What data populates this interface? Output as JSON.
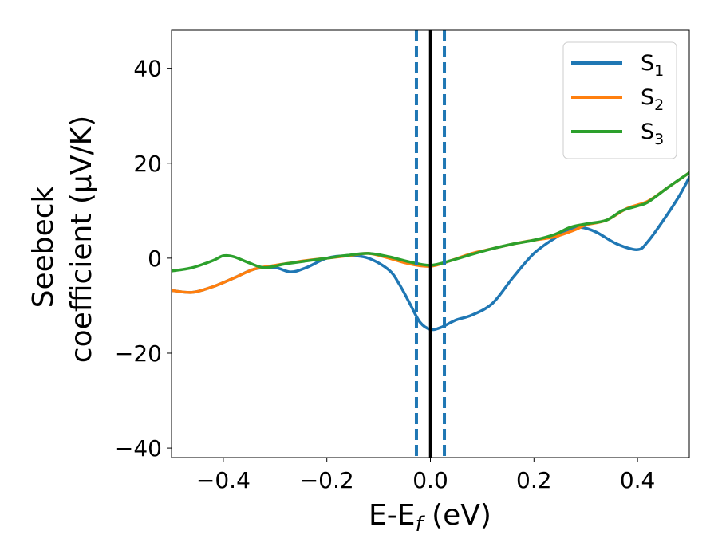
{
  "chart_data": {
    "type": "line",
    "xlabel": {
      "main": "E-E",
      "sub": "f",
      "unit": " (eV)"
    },
    "ylabel": {
      "line1": "Seebeck",
      "line2": "coefficient  (μV/K)"
    },
    "xlim": [
      -0.5,
      0.5
    ],
    "ylim": [
      -42,
      48
    ],
    "x_ticks": [
      -0.4,
      -0.2,
      0.0,
      0.2,
      0.4
    ],
    "x_tick_labels": [
      "−0.4",
      "−0.2",
      "0.0",
      "0.2",
      "0.4"
    ],
    "y_ticks": [
      -40,
      -20,
      0,
      20,
      40
    ],
    "y_tick_labels": [
      "−40",
      "−20",
      "0",
      "20",
      "40"
    ],
    "grid": false,
    "legend": {
      "placement": "top-right",
      "entries": [
        {
          "main": "S",
          "sub": "1"
        },
        {
          "main": "S",
          "sub": "2"
        },
        {
          "main": "S",
          "sub": "3"
        }
      ]
    },
    "vertical_lines": [
      {
        "x": -0.027,
        "style": "dashed",
        "color": "#1f77b4"
      },
      {
        "x": 0.0,
        "style": "solid",
        "color": "#000000"
      },
      {
        "x": 0.027,
        "style": "dashed",
        "color": "#1f77b4"
      }
    ],
    "series": [
      {
        "name": "S1",
        "color": "#1f77b4",
        "x": [
          -0.5,
          -0.46,
          -0.42,
          -0.38,
          -0.34,
          -0.3,
          -0.27,
          -0.24,
          -0.2,
          -0.16,
          -0.12,
          -0.08,
          -0.06,
          -0.04,
          -0.02,
          0.0,
          0.02,
          0.05,
          0.08,
          0.12,
          0.16,
          0.2,
          0.24,
          0.27,
          0.29,
          0.32,
          0.36,
          0.4,
          0.42,
          0.45,
          0.48,
          0.5
        ],
        "y": [
          -6.8,
          -7.2,
          -6.0,
          -4.2,
          -2.3,
          -2.0,
          -2.9,
          -2.0,
          0.0,
          0.5,
          0.0,
          -2.5,
          -5.5,
          -9.5,
          -13.5,
          -15.0,
          -14.6,
          -13.0,
          -12.0,
          -9.5,
          -4.0,
          1.0,
          4.2,
          6.0,
          6.5,
          5.5,
          3.0,
          1.8,
          3.5,
          8.0,
          13.0,
          17.0
        ]
      },
      {
        "name": "S2",
        "color": "#ff7f0e",
        "x": [
          -0.5,
          -0.46,
          -0.42,
          -0.38,
          -0.34,
          -0.3,
          -0.27,
          -0.24,
          -0.2,
          -0.16,
          -0.12,
          -0.08,
          -0.04,
          0.0,
          0.04,
          0.08,
          0.12,
          0.16,
          0.2,
          0.24,
          0.28,
          0.3,
          0.34,
          0.38,
          0.42,
          0.46,
          0.5
        ],
        "y": [
          -6.8,
          -7.2,
          -6.0,
          -4.2,
          -2.3,
          -1.5,
          -1.0,
          -0.5,
          0.0,
          0.5,
          1.0,
          0.0,
          -1.2,
          -1.7,
          -0.5,
          1.0,
          2.0,
          3.0,
          3.8,
          4.5,
          6.0,
          7.0,
          8.0,
          10.5,
          12.0,
          15.0,
          18.0
        ]
      },
      {
        "name": "S3",
        "color": "#2ca02c",
        "x": [
          -0.5,
          -0.46,
          -0.42,
          -0.4,
          -0.38,
          -0.35,
          -0.32,
          -0.28,
          -0.24,
          -0.2,
          -0.16,
          -0.12,
          -0.08,
          -0.04,
          0.0,
          0.04,
          0.08,
          0.12,
          0.16,
          0.2,
          0.24,
          0.27,
          0.3,
          0.34,
          0.37,
          0.4,
          0.42,
          0.46,
          0.5
        ],
        "y": [
          -2.7,
          -2.0,
          -0.5,
          0.5,
          0.3,
          -1.0,
          -2.0,
          -1.2,
          -0.6,
          0.0,
          0.6,
          1.0,
          0.3,
          -0.8,
          -1.5,
          -0.5,
          0.8,
          2.0,
          3.0,
          3.8,
          5.0,
          6.5,
          7.2,
          8.0,
          10.0,
          11.0,
          11.8,
          15.0,
          18.0
        ]
      }
    ]
  }
}
